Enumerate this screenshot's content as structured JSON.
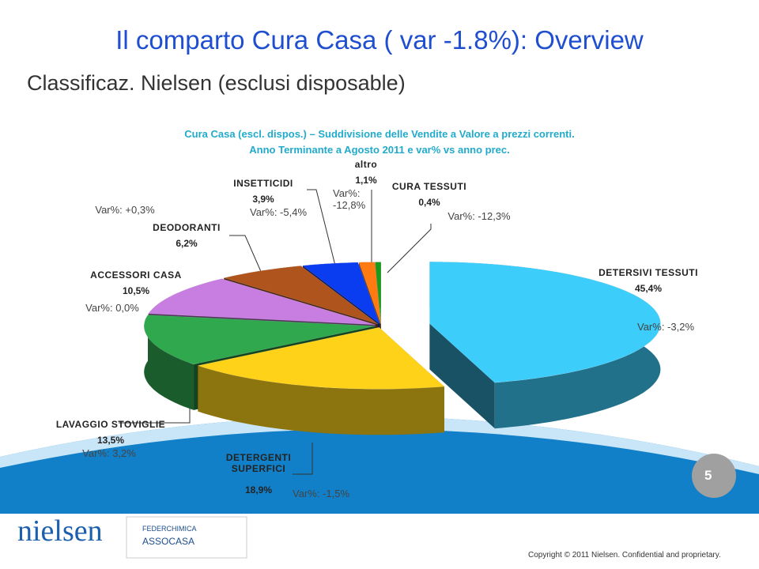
{
  "slide": {
    "title": "Il comparto Cura Casa ( var -1.8%): Overview",
    "subtitle": "Classificaz. Nielsen (esclusi disposable)",
    "page_number": "5",
    "copyright": "Copyright © 2011 Nielsen. Confidential and proprietary.",
    "logo": "nielsen",
    "partner_logo": [
      "FEDERCHIMICA",
      "ASSOCASA"
    ]
  },
  "chart_data": {
    "type": "pie",
    "title": "Cura Casa (escl. dispos.) – Suddivisione delle Vendite a Valore a prezzi correnti.",
    "subtitle": "Anno Terminante a Agosto  2011 e var% vs anno prec.",
    "categories": [
      "DETERSIVI TESSUTI",
      "DETERGENTI SUPERFICI",
      "LAVAGGIO STOVIGLIE",
      "ACCESSORI CASA",
      "DEODORANTI",
      "INSETTICIDI",
      "altro",
      "CURA TESSUTI"
    ],
    "values": [
      45.4,
      18.9,
      13.5,
      10.5,
      6.2,
      3.9,
      1.1,
      0.4
    ],
    "value_labels": [
      "45,4%",
      "18,9%",
      "13,5%",
      "10,5%",
      "6,2%",
      "3,9%",
      "1,1%",
      "0,4%"
    ],
    "annotations": [
      "Var%: -3,2%",
      "Var%: -1,5%",
      "Var%: 3,2%",
      "Var%: 0,0%",
      "Var%: +0,3%",
      "Var%: -5,4%",
      "Var%: -12,8%",
      "Var%: -12,3%"
    ],
    "colors": [
      "#3ccdfb",
      "#ffd21a",
      "#2fa84e",
      "#c77ee0",
      "#b0541e",
      "#0a3cf0",
      "#ff7a10",
      "#1a9a1a"
    ]
  }
}
